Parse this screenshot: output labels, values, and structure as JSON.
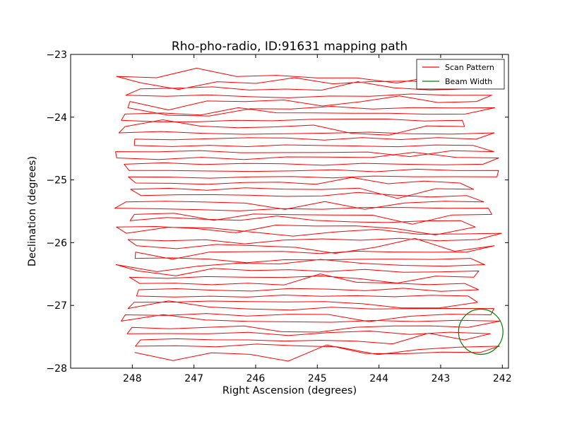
{
  "chart_data": {
    "type": "line",
    "title": "Rho-pho-radio, ID:91631 mapping path",
    "xlabel": "Right Ascension (degrees)",
    "ylabel": "Declination (degrees)",
    "xlim": [
      249.0,
      241.9
    ],
    "ylim": [
      -28.0,
      -23.0
    ],
    "x_ticks": [
      248,
      247,
      246,
      245,
      244,
      243,
      242
    ],
    "x_tick_labels": [
      "248",
      "247",
      "246",
      "245",
      "244",
      "243",
      "242"
    ],
    "y_ticks": [
      -23,
      -24,
      -25,
      -26,
      -27,
      -28
    ],
    "y_tick_labels": [
      "−23",
      "−24",
      "−25",
      "−26",
      "−27",
      "−28"
    ],
    "grid": false,
    "legend_position": "top-right",
    "series": [
      {
        "name": "Scan Pattern",
        "color": "#ff0000",
        "scan": {
          "dec_top": -23.35,
          "dec_bottom": -27.8,
          "row_step": 0.1,
          "ra_east_min": 247.85,
          "ra_east_max": 248.3,
          "ra_west_min": 242.0,
          "ra_west_max": 242.7
        }
      },
      {
        "name": "Beam Width",
        "color": "#008000",
        "circle": {
          "ra": 242.35,
          "dec": -27.42,
          "radius_deg": 0.36
        }
      }
    ]
  }
}
